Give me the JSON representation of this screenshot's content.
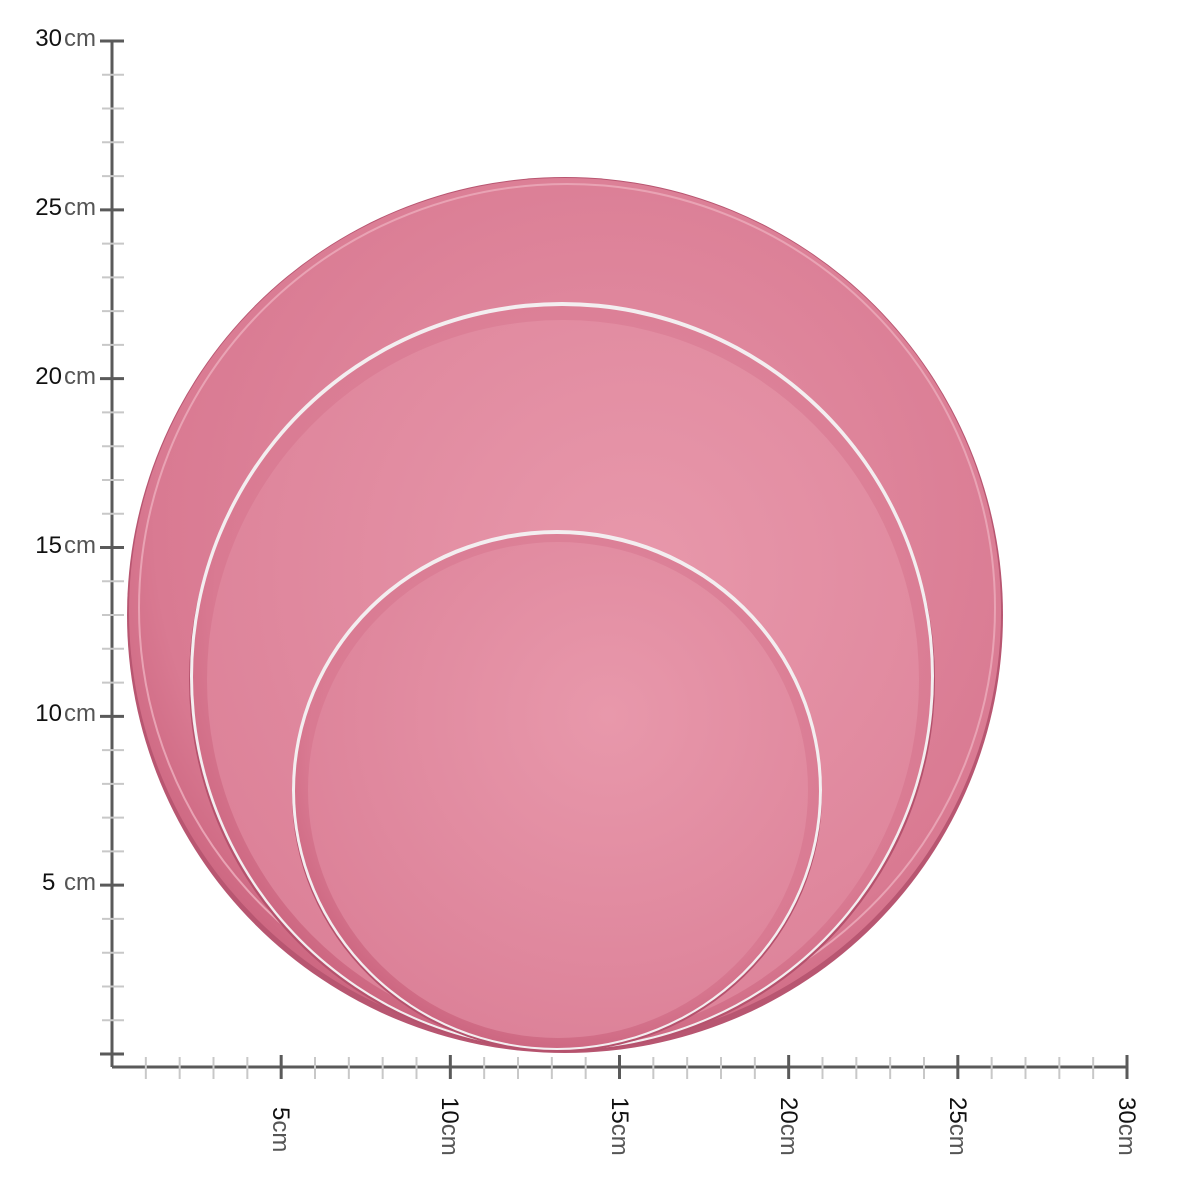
{
  "image": {
    "subject": "set of three pink round plates",
    "colors": {
      "plate_outer": "#d6718b",
      "plate_inner": "#e38ea3",
      "rim": "#f4f2f2",
      "ruler": "#5a5a5a",
      "minor_tick": "#c8c8c8"
    }
  },
  "ruler": {
    "unit": "cm",
    "range": [
      0,
      30
    ],
    "vertical_labels": [
      {
        "value": "30",
        "unit": "cm"
      },
      {
        "value": "25",
        "unit": "cm"
      },
      {
        "value": "20",
        "unit": "cm"
      },
      {
        "value": "15",
        "unit": "cm"
      },
      {
        "value": "10",
        "unit": "cm"
      },
      {
        "value": "5",
        "unit": "cm"
      }
    ],
    "horizontal_labels": [
      {
        "value": "5",
        "unit": "cm"
      },
      {
        "value": "10",
        "unit": "cm"
      },
      {
        "value": "15",
        "unit": "cm"
      },
      {
        "value": "20",
        "unit": "cm"
      },
      {
        "value": "25",
        "unit": "cm"
      },
      {
        "value": "30",
        "unit": "cm"
      }
    ]
  }
}
